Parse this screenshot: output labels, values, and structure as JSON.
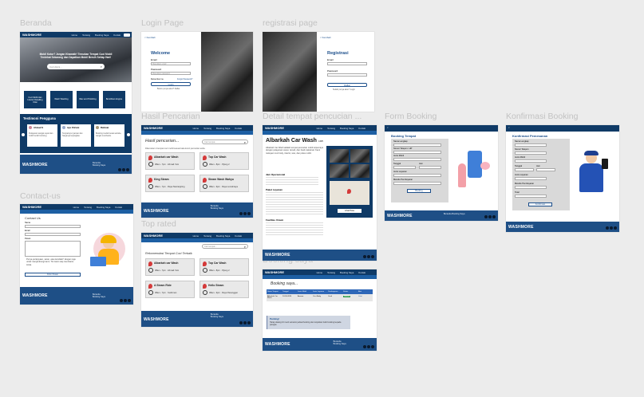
{
  "labels": {
    "beranda": "Beranda",
    "login": "Login Page",
    "registrasi": "registrasi page",
    "hasil": "Hasil Pencarian",
    "detail": "Detail tempat pencucian ...",
    "form_booking": "Form Booking",
    "konfirmasi": "Konfirmasi Booking",
    "contact": "Contact-us",
    "top_rated": "Top rated",
    "booking_saya": "Booking saya"
  },
  "nav": {
    "logo": "WASHMORE",
    "links": [
      "Home",
      "Tentang",
      "Booking Saya",
      "Kontak"
    ]
  },
  "footer": {
    "logo": "WASHMORE",
    "links": [
      "Beranda",
      "Booking Saya",
      "Top Rated",
      "Kontak"
    ]
  },
  "beranda": {
    "hero_title": "Mobil Kotor? Jangan Khawatir! Temukan Tempat Cuci Mobil Terdekat Sekarang dan Dapatkan Mobil Bersih Setiap Hari!",
    "search_placeholder": "Cari disini...",
    "tiles": [
      "Cuci Mobil dan Interior Detailing Kilat",
      "Wash Washing",
      "Wax and Polishing",
      "Bersihkan Engine"
    ],
    "testimoni_title": "Testimoni Pengguna",
    "testimonials": [
      {
        "name": "Ahmad S",
        "text": "Pelayanan sangat cepat dan mobil bersih kinclong."
      },
      {
        "name": "Ayu Fitriani",
        "text": "Tempatnya nyaman dan harganya terjangkau."
      },
      {
        "name": "Rahmat",
        "text": "Booking mudah lewat website, sangat membantu."
      }
    ]
  },
  "login": {
    "back": "< Kembali",
    "title": "Welcome",
    "email_label": "Email",
    "email_placeholder": "Masukkan email",
    "password_label": "Password",
    "password_placeholder": "Masukkan password",
    "remember": "Remember me",
    "forgot": "Forgot Password?",
    "submit": "Login",
    "signup": "Belum punya akun? Daftar"
  },
  "registrasi": {
    "back": "< Kembali",
    "title": "Registrasi",
    "email_label": "Email",
    "password_label": "Password",
    "submit": "Daftar",
    "login_link": "Sudah punya akun? Login"
  },
  "hasil": {
    "heading": "Hasil pencarian...",
    "search_value": "Cari tempat...",
    "note": "Ditemukan 4 tempat cuci mobil sesuai kata kunci pencarian anda",
    "results": [
      {
        "name": "Albarkah car Wash",
        "hours": "08am - 7pm",
        "place": "Ahmad Yani"
      },
      {
        "name": "Top Car Wash",
        "hours": "08am - 8pm",
        "place": "Pijong 2"
      },
      {
        "name": "King Steam",
        "hours": "08am - 7pm",
        "place": "Raya Siantargiring"
      },
      {
        "name": "Steam Wash Wahyu",
        "hours": "08am - 9pm",
        "place": "Raya Lemahraya"
      }
    ]
  },
  "top_rated": {
    "search_value": "Cari tempat...",
    "heading": "Rekomendasi Tempat Cuci Terbaik",
    "results": [
      {
        "name": "Albarkah car Wash",
        "hours": "08am - 7pm",
        "place": "Ahmad Yani"
      },
      {
        "name": "Top Car Wash",
        "hours": "08am - 8pm",
        "place": "Pijong 2"
      },
      {
        "name": "A Steam Ride",
        "hours": "08am - 7pm",
        "place": "Sudirman"
      },
      {
        "name": "Hello Steam",
        "hours": "08am - 9pm",
        "place": "Raya Pasanggan"
      }
    ]
  },
  "detail": {
    "title": "Albarkah Car Wash",
    "rating": "4.8/5",
    "body": "Albarkah Car Wash adalah tempat pencucian mobil terpercaya dengan pelayanan cepat, ramah, dan hasil maksimal. Kami melayani cuci body, interior, wax, dan poles mobil.",
    "section_jam": "Jam Operasional",
    "section_layanan": "Paket Layanan",
    "section_fasilitas": "Fasilitas Umum",
    "map_button": "Lihat Peta",
    "booking_button": "Booking"
  },
  "form_booking": {
    "title": "Booking Tempat",
    "fields": [
      "Nama Lengkap",
      "Nomor Telepon / HP",
      "Jenis Mobil",
      "Tanggal",
      "Jam",
      "Jenis Layanan",
      "Metode Pembayaran"
    ],
    "submit": "Booking"
  },
  "konfirmasi": {
    "title": "Konfirmasi Pemesanan",
    "fields": [
      "Nama Lengkap",
      "Nomor Telepon",
      "Jenis Mobil",
      "Tanggal",
      "Jam",
      "Jenis Layanan",
      "Metode Pembayaran",
      "Total"
    ],
    "submit": "Konfirmasi"
  },
  "contact": {
    "title": "Contact Us",
    "fields": [
      "Nama",
      "Email",
      "Pesan"
    ],
    "message": "Punya pertanyaan, saran, atau kendala? Jangan ragu untuk menghubungi kami. Tim kami siap membantu Anda.",
    "submit": "Kirim Pesan"
  },
  "booking_saya": {
    "heading": "Booking saya...",
    "columns": [
      "Nama Tempat",
      "Tanggal",
      "Jenis Mobil",
      "Jenis Layanan",
      "Pembayaran",
      "Status",
      "Aksi"
    ],
    "row": [
      "Albarkah Car Wash",
      "24-05-2024",
      "Avanza",
      "Cuci Body",
      "Cash",
      "Selesai",
      "Lihat"
    ],
    "notice_title": "Penting!",
    "notice_text": "Harap datang 10 menit sebelum jadwal booking dan tunjukkan bukti booking kepada petugas."
  }
}
